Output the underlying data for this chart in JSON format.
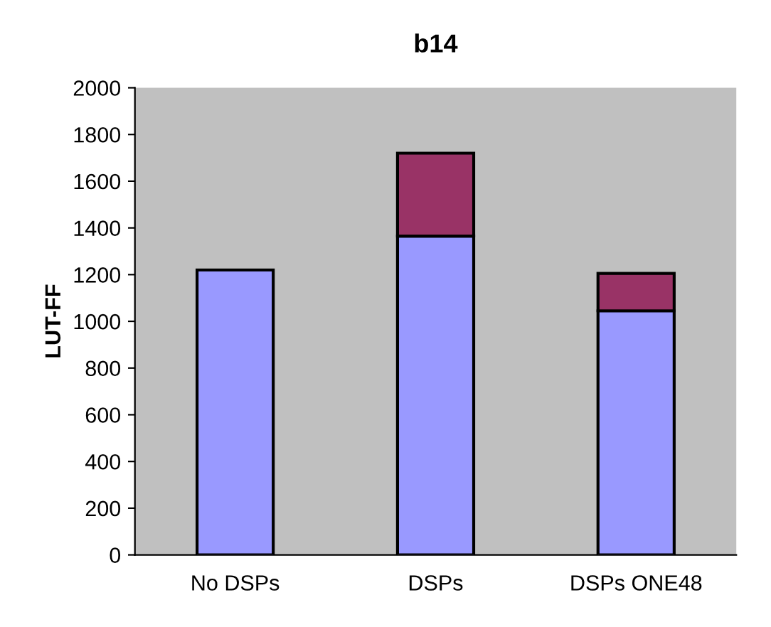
{
  "chart_data": {
    "type": "bar",
    "title": "b14",
    "ylabel": "LUT-FF",
    "categories": [
      "No DSPs",
      "DSPs",
      "DSPs ONE48"
    ],
    "stacked": true,
    "series": [
      {
        "color": "#9999ff",
        "values": [
          1220,
          1365,
          1045
        ]
      },
      {
        "color": "#993366",
        "values": [
          null,
          355,
          160
        ]
      }
    ],
    "ylim": [
      0,
      2000
    ],
    "yticks": [
      0,
      200,
      400,
      600,
      800,
      1000,
      1200,
      1400,
      1600,
      1800,
      2000
    ],
    "grid": false,
    "legend": false
  }
}
